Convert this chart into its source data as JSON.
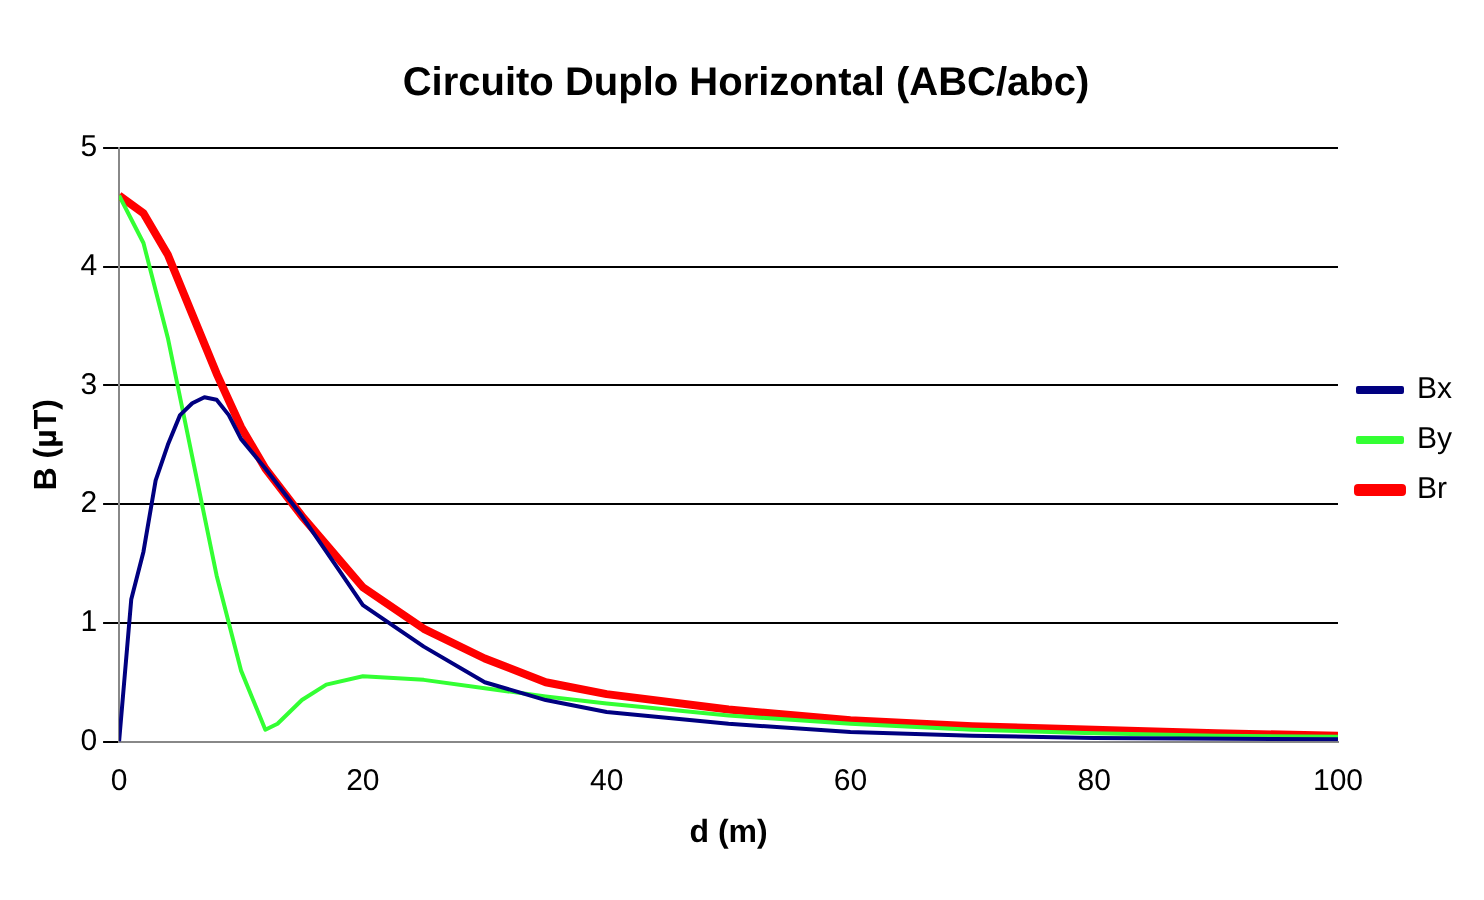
{
  "chart_data": {
    "type": "line",
    "title": "Circuito Duplo Horizontal (ABC/abc)",
    "xlabel": "d (m)",
    "ylabel": "B (µT)",
    "xlim": [
      0,
      100
    ],
    "xticks": [
      0,
      20,
      40,
      60,
      80,
      100
    ],
    "ylim": [
      0,
      5
    ],
    "yticks": [
      0,
      1,
      2,
      3,
      4,
      5
    ],
    "grid": "y",
    "legend": "right",
    "marker": "none",
    "line_style": "solid",
    "series": [
      {
        "name": "Bx",
        "color": "#000080",
        "x": [
          0,
          1,
          2,
          3,
          4,
          5,
          6,
          7,
          8,
          9,
          10,
          12,
          15,
          18,
          20,
          25,
          30,
          35,
          40,
          50,
          60,
          70,
          80,
          100
        ],
        "values": [
          0,
          1.2,
          1.6,
          2.2,
          2.5,
          2.75,
          2.85,
          2.9,
          2.88,
          2.75,
          2.55,
          2.3,
          1.9,
          1.45,
          1.15,
          0.8,
          0.5,
          0.35,
          0.25,
          0.15,
          0.08,
          0.05,
          0.03,
          0.02
        ]
      },
      {
        "name": "By",
        "color": "#33ff33",
        "x": [
          0,
          2,
          4,
          6,
          8,
          10,
          12,
          13,
          15,
          17,
          20,
          25,
          30,
          35,
          40,
          50,
          60,
          70,
          80,
          90,
          100
        ],
        "values": [
          4.6,
          4.2,
          3.4,
          2.4,
          1.4,
          0.6,
          0.1,
          0.15,
          0.35,
          0.48,
          0.55,
          0.52,
          0.45,
          0.38,
          0.32,
          0.22,
          0.15,
          0.1,
          0.07,
          0.05,
          0.04
        ]
      },
      {
        "name": "Br",
        "color": "#ff0000",
        "x": [
          0,
          2,
          4,
          6,
          8,
          10,
          12,
          15,
          20,
          25,
          30,
          35,
          40,
          50,
          60,
          70,
          80,
          90,
          100
        ],
        "values": [
          4.6,
          4.45,
          4.1,
          3.6,
          3.1,
          2.65,
          2.3,
          1.9,
          1.3,
          0.95,
          0.7,
          0.5,
          0.4,
          0.27,
          0.18,
          0.13,
          0.1,
          0.07,
          0.05
        ]
      }
    ]
  }
}
